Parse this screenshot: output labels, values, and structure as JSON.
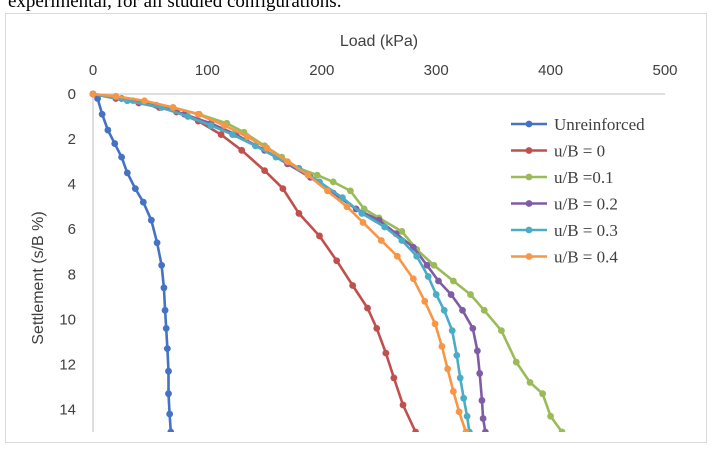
{
  "top_text": "experimental, for all studied configurations.",
  "chart_data": {
    "type": "line",
    "title": "",
    "xlabel": "Load (kPa)",
    "ylabel": "Settlement (s/B %)",
    "xlim": [
      0,
      500
    ],
    "ylim": [
      0,
      15
    ],
    "y_inverted": true,
    "x_axis_position": "top",
    "x_ticks": [
      "0",
      "100",
      "200",
      "300",
      "400",
      "500"
    ],
    "y_ticks": [
      "0",
      "2",
      "4",
      "6",
      "8",
      "10",
      "12",
      "14"
    ],
    "grid": false,
    "legend_position": "right",
    "series": [
      {
        "name": "Unreinforced",
        "color": "#4472C4",
        "points": [
          [
            0,
            0
          ],
          [
            4,
            0.2
          ],
          [
            8,
            0.9
          ],
          [
            13,
            1.6
          ],
          [
            19,
            2.2
          ],
          [
            25,
            2.8
          ],
          [
            30,
            3.5
          ],
          [
            37,
            4.2
          ],
          [
            44,
            4.8
          ],
          [
            51,
            5.6
          ],
          [
            56,
            6.6
          ],
          [
            60,
            7.6
          ],
          [
            62,
            8.6
          ],
          [
            63,
            9.6
          ],
          [
            64,
            10.4
          ],
          [
            65,
            11.3
          ],
          [
            66,
            12.3
          ],
          [
            66,
            13.3
          ],
          [
            67,
            14.2
          ],
          [
            68,
            15
          ]
        ]
      },
      {
        "name": "u/B = 0",
        "color": "#C0504D",
        "points": [
          [
            0,
            0
          ],
          [
            20,
            0.2
          ],
          [
            40,
            0.4
          ],
          [
            58,
            0.6
          ],
          [
            73,
            0.8
          ],
          [
            92,
            1.2
          ],
          [
            112,
            1.8
          ],
          [
            130,
            2.5
          ],
          [
            150,
            3.4
          ],
          [
            166,
            4.2
          ],
          [
            180,
            5.3
          ],
          [
            198,
            6.3
          ],
          [
            213,
            7.4
          ],
          [
            227,
            8.5
          ],
          [
            240,
            9.5
          ],
          [
            248,
            10.4
          ],
          [
            256,
            11.5
          ],
          [
            263,
            12.6
          ],
          [
            271,
            13.8
          ],
          [
            282,
            15
          ]
        ]
      },
      {
        "name": "u/B =0.1",
        "color": "#9BBB59",
        "points": [
          [
            0,
            0
          ],
          [
            35,
            0.3
          ],
          [
            70,
            0.6
          ],
          [
            93,
            0.9
          ],
          [
            117,
            1.3
          ],
          [
            132,
            1.7
          ],
          [
            150,
            2.3
          ],
          [
            165,
            2.8
          ],
          [
            180,
            3.3
          ],
          [
            196,
            3.6
          ],
          [
            210,
            3.9
          ],
          [
            225,
            4.3
          ],
          [
            237,
            5.1
          ],
          [
            250,
            5.5
          ],
          [
            270,
            6.1
          ],
          [
            283,
            6.9
          ],
          [
            298,
            7.6
          ],
          [
            315,
            8.3
          ],
          [
            330,
            8.9
          ],
          [
            342,
            9.6
          ],
          [
            357,
            10.5
          ],
          [
            370,
            11.9
          ],
          [
            382,
            12.8
          ],
          [
            393,
            13.3
          ],
          [
            400,
            14.3
          ],
          [
            410,
            15
          ]
        ]
      },
      {
        "name": "u/B = 0.2",
        "color": "#7F5DA6",
        "points": [
          [
            0,
            0
          ],
          [
            25,
            0.2
          ],
          [
            55,
            0.5
          ],
          [
            80,
            0.9
          ],
          [
            103,
            1.3
          ],
          [
            125,
            1.8
          ],
          [
            150,
            2.5
          ],
          [
            170,
            3.1
          ],
          [
            190,
            3.7
          ],
          [
            210,
            4.4
          ],
          [
            230,
            5.1
          ],
          [
            250,
            5.6
          ],
          [
            265,
            6.2
          ],
          [
            280,
            6.8
          ],
          [
            292,
            7.6
          ],
          [
            302,
            8.3
          ],
          [
            313,
            8.9
          ],
          [
            323,
            9.6
          ],
          [
            332,
            10.4
          ],
          [
            336,
            11.4
          ],
          [
            338,
            12.4
          ],
          [
            340,
            13.6
          ],
          [
            341,
            14.4
          ],
          [
            343,
            15
          ]
        ]
      },
      {
        "name": "u/B = 0.3",
        "color": "#4BACC6",
        "points": [
          [
            0,
            0
          ],
          [
            30,
            0.3
          ],
          [
            60,
            0.6
          ],
          [
            83,
            1.0
          ],
          [
            103,
            1.4
          ],
          [
            122,
            1.8
          ],
          [
            142,
            2.3
          ],
          [
            160,
            2.8
          ],
          [
            180,
            3.3
          ],
          [
            198,
            3.9
          ],
          [
            218,
            4.6
          ],
          [
            235,
            5.3
          ],
          [
            255,
            5.9
          ],
          [
            270,
            6.5
          ],
          [
            283,
            7.2
          ],
          [
            293,
            8.1
          ],
          [
            300,
            8.9
          ],
          [
            307,
            9.6
          ],
          [
            314,
            10.5
          ],
          [
            318,
            11.6
          ],
          [
            321,
            12.6
          ],
          [
            324,
            13.5
          ],
          [
            327,
            14.3
          ],
          [
            329,
            15
          ]
        ]
      },
      {
        "name": "u/B = 0.4",
        "color": "#F79646",
        "points": [
          [
            0,
            0
          ],
          [
            20,
            0.1
          ],
          [
            45,
            0.3
          ],
          [
            70,
            0.6
          ],
          [
            92,
            0.9
          ],
          [
            115,
            1.4
          ],
          [
            135,
            1.9
          ],
          [
            152,
            2.4
          ],
          [
            170,
            3.0
          ],
          [
            188,
            3.6
          ],
          [
            205,
            4.3
          ],
          [
            222,
            5.0
          ],
          [
            236,
            5.7
          ],
          [
            252,
            6.5
          ],
          [
            266,
            7.2
          ],
          [
            280,
            8.2
          ],
          [
            290,
            9.2
          ],
          [
            299,
            10.2
          ],
          [
            305,
            11.2
          ],
          [
            310,
            12.2
          ],
          [
            315,
            13.2
          ],
          [
            320,
            14.1
          ],
          [
            326,
            15
          ]
        ]
      }
    ]
  }
}
